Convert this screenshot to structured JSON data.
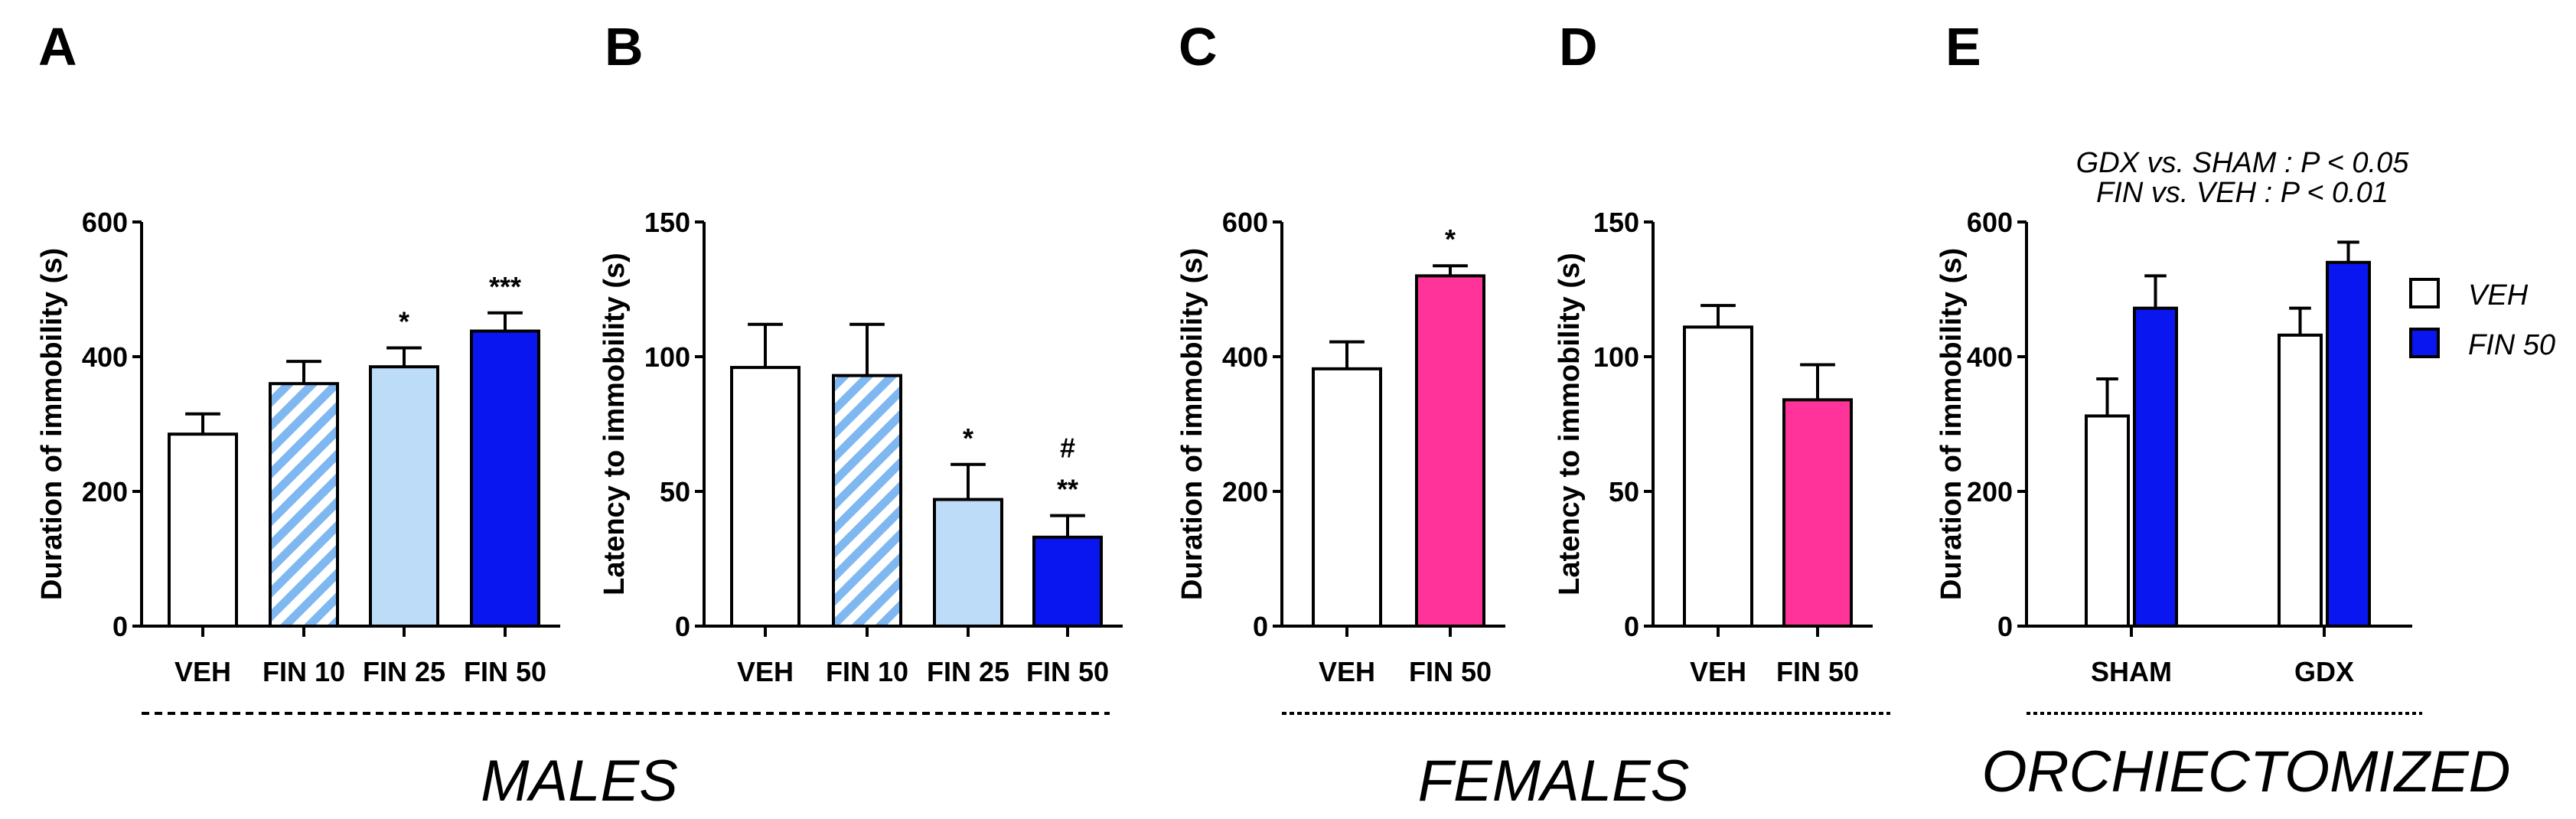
{
  "chart_data": [
    {
      "panel": "A",
      "type": "bar",
      "ylabel": "Duration of immobility (s)",
      "ylim": [
        0,
        600
      ],
      "yticks": [
        0,
        200,
        400,
        600
      ],
      "categories": [
        "VEH",
        "FIN 10",
        "FIN 25",
        "FIN 50"
      ],
      "values": [
        285,
        360,
        385,
        438
      ],
      "errors": [
        30,
        33,
        28,
        27
      ],
      "fills": [
        "#ffffff",
        "hatch",
        "#bddcf7",
        "#0a16f0"
      ],
      "annotations": [
        [],
        [],
        [
          "*"
        ],
        [
          "***"
        ]
      ]
    },
    {
      "panel": "B",
      "type": "bar",
      "ylabel": "Latency to immobility (s)",
      "ylim": [
        0,
        150
      ],
      "yticks": [
        0,
        50,
        100,
        150
      ],
      "categories": [
        "VEH",
        "FIN 10",
        "FIN 25",
        "FIN 50"
      ],
      "values": [
        96,
        93,
        47,
        33
      ],
      "errors": [
        16,
        19,
        13,
        8
      ],
      "fills": [
        "#ffffff",
        "hatch",
        "#bddcf7",
        "#0a16f0"
      ],
      "annotations": [
        [],
        [],
        [
          "*"
        ],
        [
          "**",
          "#"
        ]
      ]
    },
    {
      "panel": "C",
      "type": "bar",
      "ylabel": "Duration of immobility (s)",
      "ylim": [
        0,
        600
      ],
      "yticks": [
        0,
        200,
        400,
        600
      ],
      "categories": [
        "VEH",
        "FIN 50"
      ],
      "values": [
        382,
        520
      ],
      "errors": [
        40,
        15
      ],
      "fills": [
        "#ffffff",
        "#ff3399"
      ],
      "annotations": [
        [],
        [
          "*"
        ]
      ]
    },
    {
      "panel": "D",
      "type": "bar",
      "ylabel": "Latency to immobility (s)",
      "ylim": [
        0,
        150
      ],
      "yticks": [
        0,
        50,
        100,
        150
      ],
      "categories": [
        "VEH",
        "FIN 50"
      ],
      "values": [
        111,
        84
      ],
      "errors": [
        8,
        13
      ],
      "fills": [
        "#ffffff",
        "#ff3399"
      ],
      "annotations": [
        [],
        []
      ]
    },
    {
      "panel": "E",
      "type": "bar",
      "ylabel": "Duration of immobility (s)",
      "ylim": [
        0,
        600
      ],
      "yticks": [
        0,
        200,
        400,
        600
      ],
      "categories": [
        "SHAM",
        "GDX"
      ],
      "series": [
        {
          "name": "VEH",
          "values": [
            312,
            432
          ],
          "errors": [
            55,
            40
          ],
          "fill": "#ffffff"
        },
        {
          "name": "FIN 50",
          "values": [
            472,
            540
          ],
          "errors": [
            48,
            30
          ],
          "fill": "#0a16f0"
        }
      ],
      "notes": [
        "GDX vs. SHAM : P < 0.05",
        "FIN vs. VEH : P < 0.01"
      ],
      "legend": "right"
    }
  ],
  "groups": {
    "males": "MALES",
    "females": "FEMALES",
    "orchiectomized": "ORCHIECTOMIZED"
  },
  "colors": {
    "axis": "#000000",
    "hatch_stripe": "#7fb8f0",
    "light_blue": "#bddcf7",
    "blue": "#0a16f0",
    "pink": "#ff3399"
  }
}
